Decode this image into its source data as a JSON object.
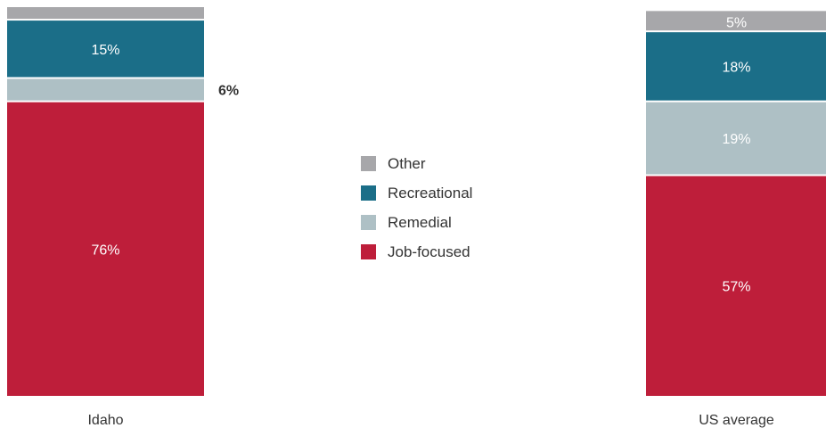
{
  "chart_data": {
    "type": "bar",
    "stacked": true,
    "categories": [
      "Idaho",
      "US average"
    ],
    "series": [
      {
        "name": "Job-focused",
        "color": "#be1e3a",
        "values": [
          76,
          57
        ]
      },
      {
        "name": "Remedial",
        "color": "#aec0c5",
        "values": [
          6,
          19
        ]
      },
      {
        "name": "Recreational",
        "color": "#1b6e88",
        "values": [
          15,
          18
        ]
      },
      {
        "name": "Other",
        "color": "#a7a7aa",
        "values": [
          3,
          5
        ]
      }
    ],
    "data_labels": [
      [
        "76%",
        "6%",
        "15%",
        ""
      ],
      [
        "57%",
        "19%",
        "18%",
        "5%"
      ]
    ],
    "legend_order": [
      "Other",
      "Recreational",
      "Remedial",
      "Job-focused"
    ],
    "legend_position": "center",
    "ylim": [
      0,
      100
    ],
    "grid": false
  }
}
